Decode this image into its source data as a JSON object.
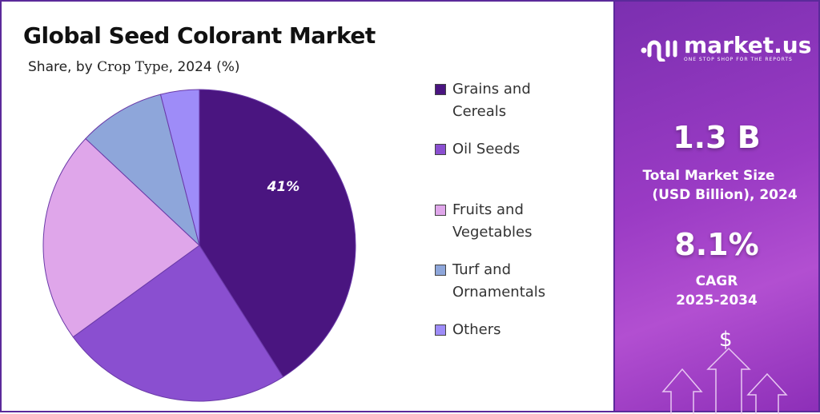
{
  "chart_data": {
    "type": "pie",
    "title": "Global Seed Colorant Market",
    "subtitle_prefix": "Share, by ",
    "subtitle_serif": "Crop Type",
    "subtitle_suffix": ", 2024 (%)",
    "categories": [
      "Grains and Cereals",
      "Oil Seeds",
      "Fruits and Vegetables",
      "Turf and Ornamentals",
      "Others"
    ],
    "legend_lines": [
      [
        "Grains and",
        "Cereals"
      ],
      [
        "Oil Seeds"
      ],
      [
        "Fruits and",
        "Vegetables"
      ],
      [
        "Turf and",
        "Ornamentals"
      ],
      [
        "Others"
      ]
    ],
    "values": [
      41,
      24,
      22,
      9,
      4
    ],
    "colors": [
      "#4a1580",
      "#8a4fd0",
      "#dfa6ea",
      "#8ea6da",
      "#9e8cf8"
    ],
    "data_labels": [
      "41%",
      "",
      "",
      "",
      ""
    ],
    "legend_placement": "right"
  },
  "brand": {
    "name": "market.us",
    "tagline": "ONE STOP SHOP FOR THE REPORTS"
  },
  "stats": {
    "market_size": "1.3 B",
    "market_size_label1": "Total Market Size",
    "market_size_label2": "(USD Billion), 2024",
    "cagr": "8.1%",
    "cagr_label1": "CAGR",
    "cagr_label2": "2025-2034"
  },
  "icons": {
    "dollar": "$"
  }
}
